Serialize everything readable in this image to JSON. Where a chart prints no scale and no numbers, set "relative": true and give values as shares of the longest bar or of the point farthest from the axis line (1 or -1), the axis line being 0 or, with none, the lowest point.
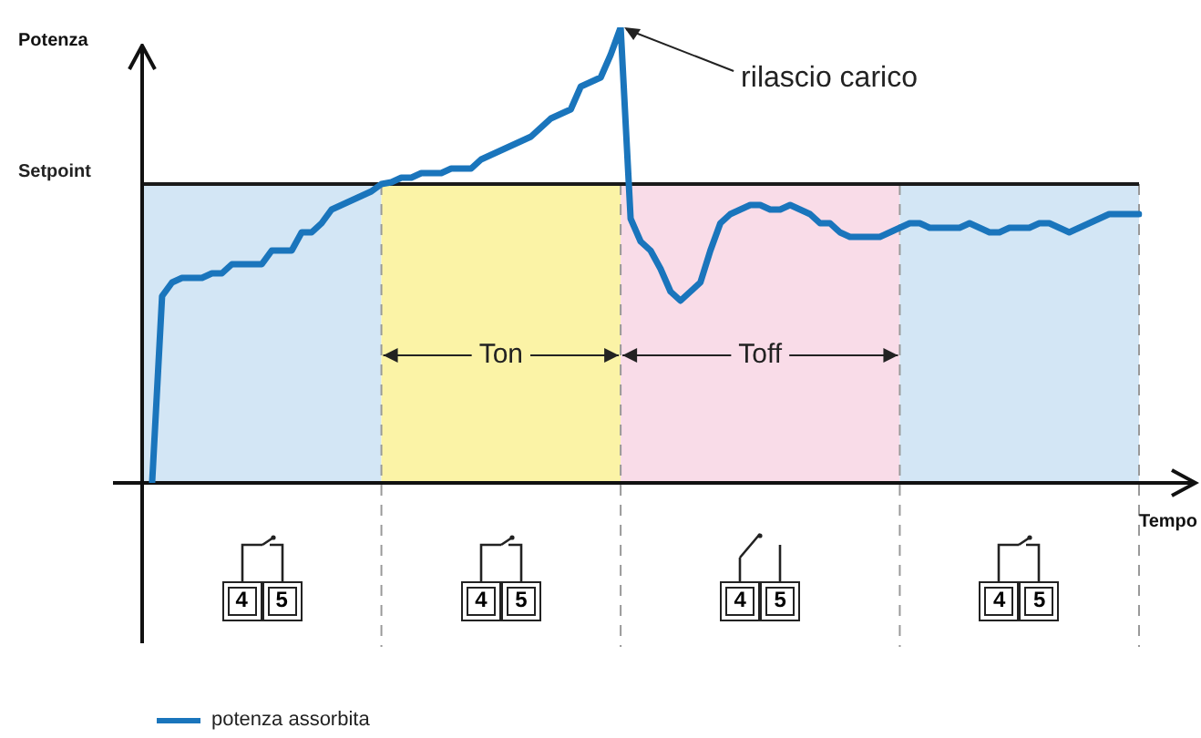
{
  "chart_data": {
    "type": "line",
    "xlabel": "Tempo",
    "ylabel": "Potenza",
    "relative": true,
    "tick_labels": false,
    "legend": "bottom left",
    "grid": "x",
    "categories": [
      null,
      null,
      null,
      null,
      null,
      null,
      null,
      null,
      null,
      null,
      null,
      null,
      null,
      null,
      null,
      null,
      null,
      null,
      null,
      null,
      null,
      null,
      null,
      null,
      null,
      null,
      null,
      null,
      null,
      null,
      null,
      null,
      null,
      null,
      null,
      null,
      null,
      null,
      null,
      null,
      null,
      null,
      null,
      null,
      null,
      null,
      null,
      null,
      null,
      null,
      null,
      null,
      null,
      null,
      null,
      null,
      null,
      null,
      null,
      null,
      null,
      null,
      null,
      null,
      null,
      null,
      null,
      null,
      null,
      null,
      null,
      null,
      null,
      null,
      null,
      null,
      null,
      null,
      null,
      null,
      null,
      null,
      null,
      null,
      null,
      null,
      null,
      null,
      null,
      null,
      null,
      null,
      null,
      null,
      null,
      null,
      null,
      null,
      null,
      null,
      null
    ],
    "series": [
      {
        "name": "potenza assorbita",
        "color": "#1a75bc",
        "values": [
          null,
          0,
          0.41,
          0.44,
          0.45,
          0.45,
          0.45,
          0.46,
          0.46,
          0.48,
          0.48,
          0.48,
          0.48,
          0.51,
          0.51,
          0.51,
          0.55,
          0.55,
          0.57,
          0.6,
          0.61,
          0.62,
          0.63,
          0.64,
          0.656,
          0.66,
          0.67,
          0.67,
          0.68,
          0.68,
          0.68,
          0.69,
          0.69,
          0.69,
          0.71,
          0.72,
          0.73,
          0.74,
          0.75,
          0.76,
          0.78,
          0.8,
          0.81,
          0.82,
          0.87,
          0.88,
          0.89,
          0.94,
          1.0,
          0.58,
          0.53,
          0.51,
          0.47,
          0.42,
          0.4,
          0.42,
          0.44,
          0.51,
          0.57,
          0.59,
          0.6,
          0.61,
          0.61,
          0.6,
          0.6,
          0.61,
          0.6,
          0.59,
          0.57,
          0.57,
          0.55,
          0.54,
          0.54,
          0.54,
          0.54,
          0.55,
          0.56,
          0.57,
          0.57,
          0.56,
          0.56,
          0.56,
          0.56,
          0.57,
          0.56,
          0.55,
          0.55,
          0.56,
          0.56,
          0.56,
          0.57,
          0.57,
          0.56,
          0.55,
          0.56,
          0.57,
          0.58,
          0.59,
          0.59,
          0.59,
          0.59
        ]
      }
    ],
    "ref_lines": [
      {
        "axis": "y",
        "value": 0.656,
        "label": "Setpoint",
        "color": "#1a1a1a"
      }
    ],
    "annotations": [
      "rilascio carico",
      "Ton",
      "Toff",
      "4",
      "5"
    ]
  }
}
